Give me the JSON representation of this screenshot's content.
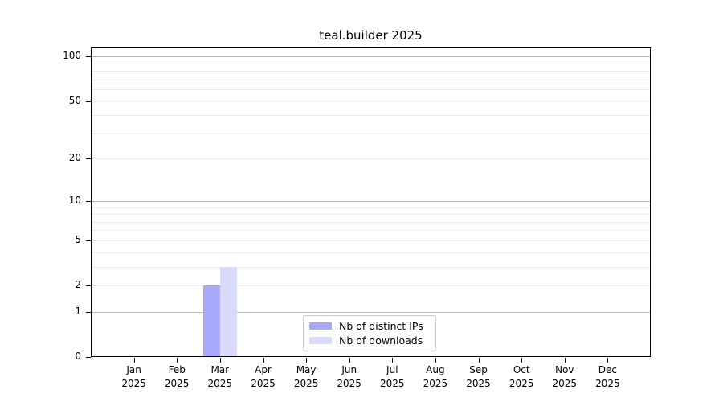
{
  "title": "teal.builder 2025",
  "colors": {
    "distinct_ips": "#a8a8fa",
    "downloads": "#d9d9fa",
    "major_grid": "#b9b9b9",
    "minor_grid": "#ececec",
    "axis": "#000000",
    "legend_border": "#cccccc"
  },
  "chart_data": {
    "type": "bar",
    "title": "teal.builder 2025",
    "categories": [
      "Jan",
      "Feb",
      "Mar",
      "Apr",
      "May",
      "Jun",
      "Jul",
      "Aug",
      "Sep",
      "Oct",
      "Nov",
      "Dec"
    ],
    "x_tick_year": "2025",
    "series": [
      {
        "name": "Nb of distinct IPs",
        "color_key": "distinct_ips",
        "values": [
          0,
          0,
          2,
          0,
          0,
          0,
          0,
          0,
          0,
          0,
          0,
          0
        ]
      },
      {
        "name": "Nb of downloads",
        "color_key": "downloads",
        "values": [
          0,
          0,
          3,
          0,
          0,
          0,
          0,
          0,
          0,
          0,
          0,
          0
        ]
      }
    ],
    "y_ticks": [
      0,
      1,
      2,
      5,
      10,
      20,
      50,
      100
    ],
    "major_grid_values": [
      1,
      10,
      100
    ],
    "scale": "log1p",
    "ylim": [
      0,
      115
    ],
    "xlabel": "",
    "ylabel": "",
    "grid": true,
    "legend_position": "lower center"
  }
}
